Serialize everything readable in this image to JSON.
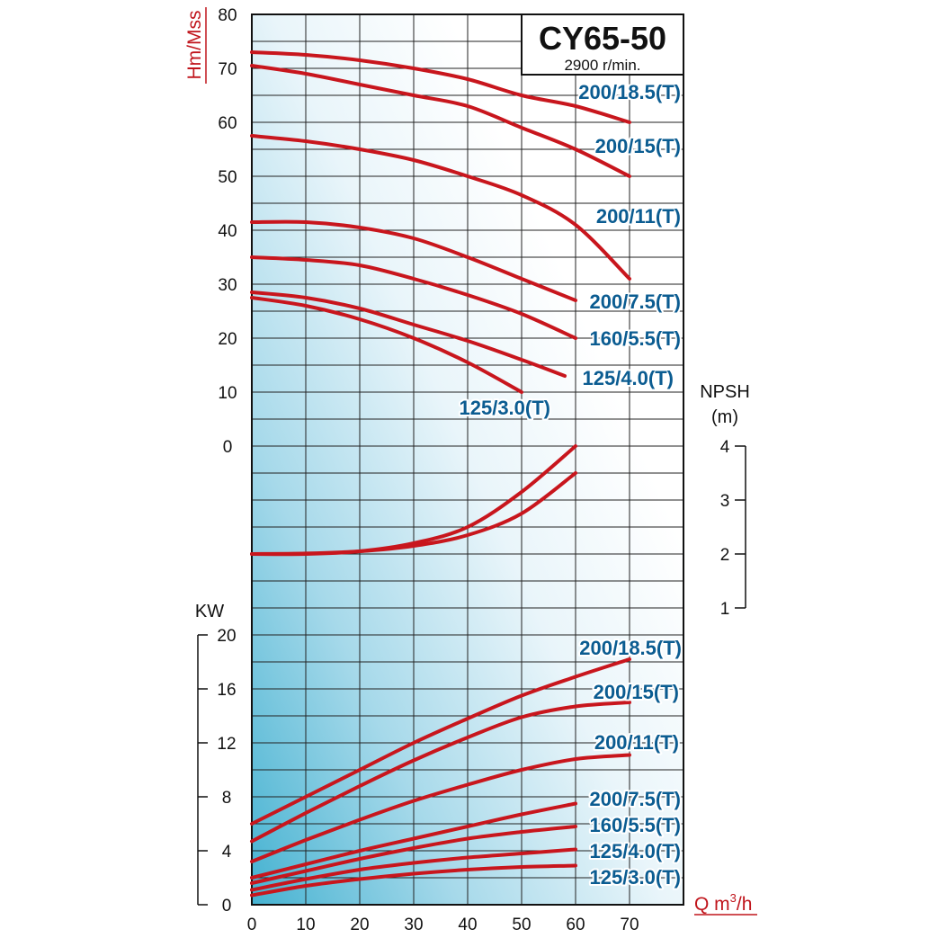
{
  "chart_data": {
    "type": "line",
    "title": "CY65-50",
    "subtitle": "2900 r/min.",
    "x_axis": {
      "label": "Q m3/h",
      "label_main": "Q m",
      "label_sup": "3",
      "label_tail": "/h",
      "range": [
        0,
        80
      ],
      "ticks": [
        "0",
        "10",
        "20",
        "30",
        "40",
        "50",
        "60",
        "70"
      ]
    },
    "head_axis": {
      "label": "Hm/Mss",
      "range": [
        0,
        80
      ],
      "ticks": [
        "80",
        "70",
        "60",
        "50",
        "40",
        "30",
        "20",
        "10",
        "0"
      ]
    },
    "npsh_axis": {
      "label_line1": "NPSH",
      "label_line2": "(m)",
      "range": [
        1,
        4
      ],
      "ticks": [
        "4",
        "3",
        "2",
        "1"
      ]
    },
    "power_axis": {
      "label": "KW",
      "range": [
        0,
        20
      ],
      "ticks": [
        "20",
        "16",
        "12",
        "8",
        "4",
        "0"
      ]
    },
    "grid": true,
    "head_curves": [
      {
        "name": "200/18.5(T)",
        "x": [
          0,
          10,
          20,
          30,
          40,
          50,
          60,
          70
        ],
        "y": [
          73,
          72.5,
          71.5,
          70,
          68,
          65,
          63,
          60
        ]
      },
      {
        "name": "200/15(T)",
        "x": [
          0,
          10,
          20,
          30,
          40,
          50,
          60,
          70
        ],
        "y": [
          70.5,
          69,
          67,
          65,
          63,
          59,
          55,
          50
        ]
      },
      {
        "name": "200/11(T)",
        "x": [
          0,
          10,
          20,
          30,
          40,
          50,
          60,
          70
        ],
        "y": [
          57.5,
          56.5,
          55,
          53,
          50,
          46.5,
          41,
          31
        ]
      },
      {
        "name": "200/7.5(T)",
        "x": [
          0,
          10,
          20,
          30,
          40,
          50,
          60
        ],
        "y": [
          41.5,
          41.5,
          40.5,
          38.5,
          35,
          31,
          27
        ]
      },
      {
        "name": "160/5.5(T)",
        "x": [
          0,
          10,
          20,
          30,
          40,
          50,
          60
        ],
        "y": [
          35,
          34.5,
          33.5,
          31,
          28,
          24.5,
          20
        ]
      },
      {
        "name": "125/4.0(T)",
        "x": [
          0,
          10,
          20,
          30,
          40,
          50,
          58
        ],
        "y": [
          28.5,
          27.5,
          25.5,
          22.5,
          19.5,
          16,
          13
        ]
      },
      {
        "name": "125/3.0(T)",
        "x": [
          0,
          10,
          20,
          30,
          40,
          50
        ],
        "y": [
          27.5,
          26,
          23.5,
          20,
          15.5,
          10
        ]
      }
    ],
    "npsh_curves": [
      {
        "x": [
          0,
          10,
          20,
          30,
          40,
          50,
          60
        ],
        "y": [
          2.0,
          2.01,
          2.05,
          2.15,
          2.35,
          2.75,
          3.5
        ]
      },
      {
        "x": [
          0,
          10,
          20,
          30,
          40,
          50,
          60
        ],
        "y": [
          2.0,
          2.0,
          2.05,
          2.2,
          2.5,
          3.15,
          4.0
        ]
      }
    ],
    "power_curves": [
      {
        "name": "200/18.5(T)",
        "x": [
          0,
          10,
          20,
          30,
          40,
          50,
          60,
          70
        ],
        "y": [
          6,
          8,
          10,
          12,
          13.8,
          15.5,
          16.9,
          18.2
        ]
      },
      {
        "name": "200/15(T)",
        "x": [
          0,
          10,
          20,
          30,
          40,
          50,
          60,
          70
        ],
        "y": [
          4.7,
          6.8,
          8.8,
          10.7,
          12.4,
          13.9,
          14.7,
          15
        ]
      },
      {
        "name": "200/11(T)",
        "x": [
          0,
          10,
          20,
          30,
          40,
          50,
          60,
          70
        ],
        "y": [
          3.2,
          4.8,
          6.3,
          7.7,
          8.9,
          10,
          10.8,
          11.1
        ]
      },
      {
        "name": "200/7.5(T)",
        "x": [
          0,
          10,
          20,
          30,
          40,
          50,
          60
        ],
        "y": [
          2,
          3,
          4,
          4.9,
          5.8,
          6.7,
          7.5
        ]
      },
      {
        "name": "160/5.5(T)",
        "x": [
          0,
          10,
          20,
          30,
          40,
          50,
          60
        ],
        "y": [
          1.6,
          2.5,
          3.4,
          4.2,
          4.9,
          5.4,
          5.8
        ]
      },
      {
        "name": "125/4.0(T)",
        "x": [
          0,
          10,
          20,
          30,
          40,
          50,
          60
        ],
        "y": [
          1.1,
          1.9,
          2.6,
          3.1,
          3.5,
          3.8,
          4.1
        ]
      },
      {
        "name": "125/3.0(T)",
        "x": [
          0,
          10,
          20,
          30,
          40,
          50,
          60
        ],
        "y": [
          0.7,
          1.4,
          1.9,
          2.3,
          2.6,
          2.8,
          2.9
        ]
      }
    ],
    "colors": {
      "curve": "#c8161d",
      "label": "#0b5c91",
      "axis_title": "#c0151c",
      "background_light": "#ffffff",
      "background_dark": "#5bbad6"
    }
  }
}
